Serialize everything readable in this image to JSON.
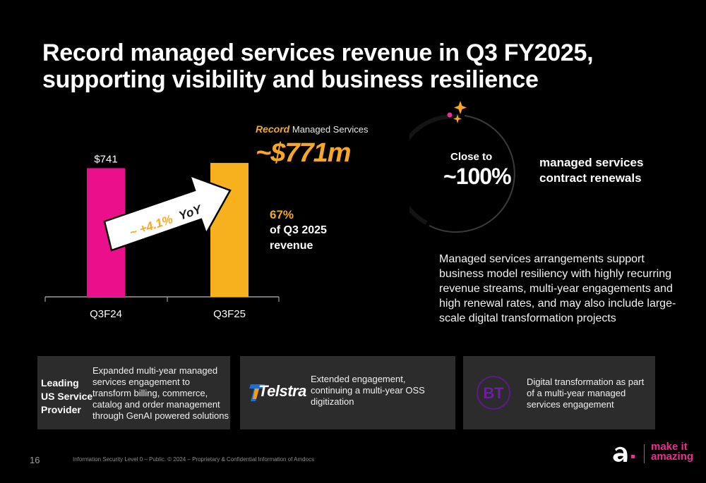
{
  "title": {
    "line1": "Record managed services revenue in Q3 FY2025,",
    "line2": "supporting visibility and business resilience"
  },
  "chart_data": {
    "type": "bar",
    "categories": [
      "Q3F24",
      "Q3F25"
    ],
    "values": [
      741,
      771
    ],
    "colors": [
      "#ec0f8c",
      "#f7b11c"
    ],
    "data_labels": [
      "$741",
      ""
    ],
    "ylim": [
      0,
      820
    ],
    "grid": false,
    "annotation": {
      "growth": "~ +4.1%",
      "suffix": "YoY"
    }
  },
  "record": {
    "strong": "Record",
    "rest": "Managed Services",
    "value": "~$771m",
    "share_pct": "67%",
    "share_line2": "of Q3 2025",
    "share_line3": "revenue"
  },
  "renewal": {
    "close_to": "Close to",
    "value": "~100%",
    "label_line1": "managed services",
    "label_line2": "contract renewals"
  },
  "description": "Managed services arrangements support business model resiliency with highly recurring revenue streams, multi-year engagements and high renewal rates, and may also include large-scale digital transformation projects",
  "cards": [
    {
      "lead_line1": "Leading",
      "lead_line2": "US Service",
      "lead_line3": "Provider",
      "text": "Expanded multi-year managed services engagement to transform billing, commerce, catalog and order  management through GenAI powered solutions"
    },
    {
      "logo_text": "Telstra",
      "text": "Extended engagement, continuing a multi-year OSS digitization"
    },
    {
      "logo_text": "BT",
      "text": "Digital transformation as part of a multi-year managed services engagement"
    }
  ],
  "footer": {
    "page_number": "16",
    "text": "Information Security Level 0 – Public. © 2024 – Proprietary & Confidential Information of Amdocs",
    "brand_line1": "make it",
    "brand_line2": "amazing"
  },
  "colors": {
    "accent_orange": "#f7a823",
    "accent_pink": "#ec0f8c",
    "card_bg": "#2c2c2c"
  }
}
